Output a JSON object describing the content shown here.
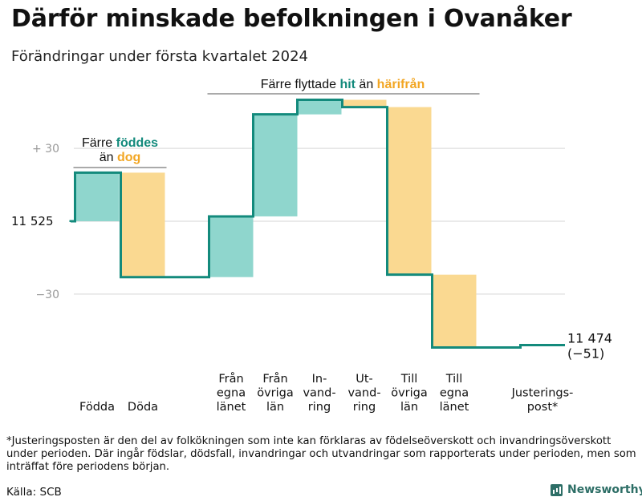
{
  "title": "Därför minskade befolkningen i Ovanåker",
  "subtitle": "Förändringar under första kvartalet 2024",
  "chart_data": {
    "type": "waterfall",
    "start_value": 11525,
    "end_value": 11474,
    "end_label": "11 474",
    "end_change_label": "(−51)",
    "y_reference_label": "11  525",
    "y_ticks": [
      {
        "value": 30,
        "label": "+  30"
      },
      {
        "value": -30,
        "label": "−30"
      }
    ],
    "ylim": [
      -52,
      52
    ],
    "steps": [
      {
        "label_lines": [
          "Födda"
        ],
        "change": 20,
        "kind": "in"
      },
      {
        "label_lines": [
          "Döda"
        ],
        "change": -43,
        "kind": "out"
      },
      {
        "label_lines": [
          "Från",
          "egna",
          "länet"
        ],
        "change": 25,
        "kind": "in"
      },
      {
        "label_lines": [
          "Från",
          "övriga",
          "län"
        ],
        "change": 42,
        "kind": "in"
      },
      {
        "label_lines": [
          "In-",
          "vand-",
          "ring"
        ],
        "change": 6,
        "kind": "in"
      },
      {
        "label_lines": [
          "Ut-",
          "vand-",
          "ring"
        ],
        "change": -3,
        "kind": "out"
      },
      {
        "label_lines": [
          "Till",
          "övriga",
          "län"
        ],
        "change": -69,
        "kind": "out"
      },
      {
        "label_lines": [
          "Till",
          "egna",
          "länet"
        ],
        "change": -30,
        "kind": "out"
      },
      {
        "label_lines": [
          "Justerings-",
          "post*"
        ],
        "change": 1,
        "kind": "adjust"
      }
    ],
    "annotations": [
      {
        "covers": [
          0,
          1
        ],
        "line1": [
          {
            "text": "Färre ",
            "style": "plain"
          },
          {
            "text": "föddes",
            "style": "in"
          }
        ],
        "line2": [
          {
            "text": "än ",
            "style": "plain"
          },
          {
            "text": "dog",
            "style": "out"
          }
        ]
      },
      {
        "covers": [
          2,
          7
        ],
        "line1": [
          {
            "text": "Färre flyttade  ",
            "style": "plain"
          },
          {
            "text": "hit",
            "style": "in"
          },
          {
            "text": "  än ",
            "style": "plain"
          },
          {
            "text": "härifrån",
            "style": "out"
          }
        ]
      }
    ],
    "colors": {
      "in_fill": "#8fd6cd",
      "out_fill": "#fad991",
      "line": "#138a7c",
      "in_text": "#138a7c",
      "out_text": "#f2a623",
      "grid": "#dddddd",
      "tick_text": "#999999"
    }
  },
  "footnote": "*Justeringsposten är den del av folkökningen som inte kan förklaras av födelseöverskott och invandringsöverskott under perioden. Där ingår födslar, dödsfall, invandringar och utvandringar som rapporterats under perioden, men som inträffat före periodens början.",
  "source": "Källa: SCB",
  "brand": "Newsworthy"
}
